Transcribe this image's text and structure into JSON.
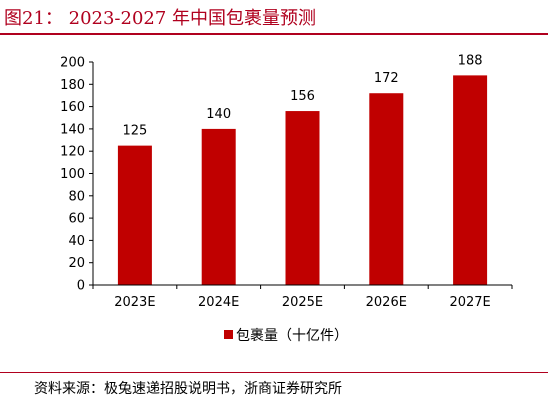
{
  "figure": {
    "title": "图21：  2023-2027 年中国包裹量预测",
    "source": "资料来源：极兔速递招股说明书，浙商证券研究所"
  },
  "chart_data": {
    "type": "bar",
    "title": "",
    "xlabel": "",
    "ylabel": "",
    "categories": [
      "2023E",
      "2024E",
      "2025E",
      "2026E",
      "2027E"
    ],
    "series": [
      {
        "name": "包裹量（十亿件）",
        "values": [
          125,
          140,
          156,
          172,
          188
        ]
      }
    ],
    "ylim": [
      0,
      200
    ],
    "yticks": [
      "0",
      "20",
      "40",
      "60",
      "80",
      "100",
      "120",
      "140",
      "160",
      "180",
      "200"
    ],
    "grid": false,
    "legend": "bottom",
    "colors": {
      "bar": "#c00000",
      "axis": "#000000",
      "title": "#b0001e"
    }
  }
}
